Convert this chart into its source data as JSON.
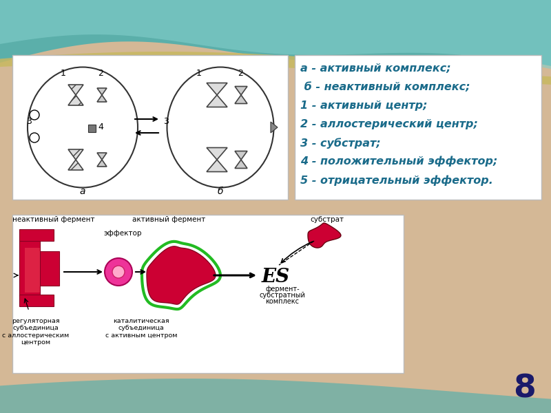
{
  "bg_color_main": "#D4B896",
  "bg_color_teal": "#5BAFAA",
  "slide_number": "8",
  "legend_lines": [
    "а - активный комплекс;",
    " б - неактивный комплекс;",
    "1 - активный центр;",
    "2 - аллостерический центр;",
    "3 - субстрат;",
    "4 - положительный эффектор;",
    "5 - отрицательный эффектор."
  ],
  "legend_color": "#1A6B8A",
  "legend_fontsize": 11.5,
  "slide_num_fontsize": 34,
  "slide_num_color": "#1A1A6A",
  "wave_color1": "#5BAFAA",
  "wave_color2": "#82CECA",
  "wave_color3": "#C8B860",
  "panel_fc": "#FFFFFF",
  "panel_ec": "#BBBBBB"
}
